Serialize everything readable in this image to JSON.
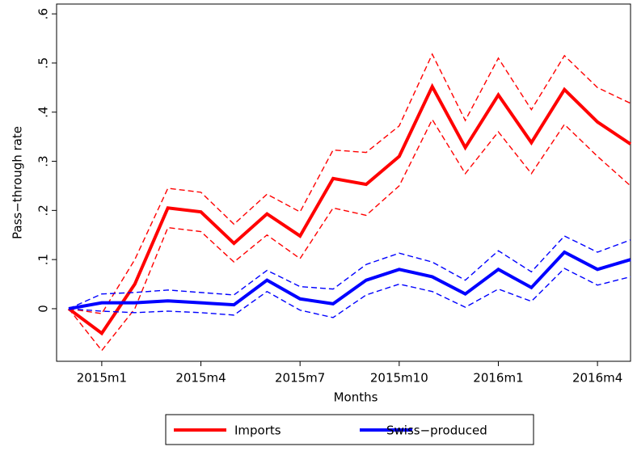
{
  "chart_data": {
    "type": "line",
    "x_label": "Months",
    "y_label": "Pass−through rate",
    "categories": [
      null,
      "2015m1",
      null,
      null,
      "2015m4",
      null,
      null,
      "2015m7",
      null,
      null,
      "2015m10",
      null,
      null,
      "2016m1",
      null,
      null,
      "2016m4",
      null
    ],
    "series": [
      {
        "name": "Imports",
        "color": "#ff0000",
        "values": [
          0,
          -0.05,
          0.05,
          0.205,
          0.197,
          0.133,
          0.193,
          0.148,
          0.265,
          0.253,
          0.31,
          0.452,
          0.328,
          0.435,
          0.338,
          0.446,
          0.38,
          0.335
        ],
        "upper": [
          0,
          -0.01,
          0.1,
          0.245,
          0.237,
          0.172,
          0.233,
          0.197,
          0.323,
          0.318,
          0.372,
          0.518,
          0.383,
          0.51,
          0.405,
          0.515,
          0.45,
          0.418
        ],
        "lower": [
          0,
          -0.085,
          0.0,
          0.165,
          0.157,
          0.095,
          0.15,
          0.102,
          0.205,
          0.19,
          0.25,
          0.385,
          0.275,
          0.36,
          0.275,
          0.375,
          0.31,
          0.25
        ]
      },
      {
        "name": "Swiss−produced",
        "color": "#0000ff",
        "values": [
          0,
          0.012,
          0.012,
          0.016,
          0.012,
          0.008,
          0.058,
          0.02,
          0.01,
          0.058,
          0.08,
          0.065,
          0.03,
          0.08,
          0.043,
          0.115,
          0.08,
          0.1
        ],
        "upper": [
          0,
          0.03,
          0.033,
          0.038,
          0.033,
          0.028,
          0.078,
          0.045,
          0.04,
          0.09,
          0.113,
          0.095,
          0.058,
          0.118,
          0.075,
          0.148,
          0.115,
          0.14
        ],
        "lower": [
          0,
          -0.005,
          -0.008,
          -0.005,
          -0.008,
          -0.013,
          0.035,
          -0.003,
          -0.018,
          0.028,
          0.05,
          0.035,
          0.003,
          0.04,
          0.015,
          0.082,
          0.048,
          0.065
        ]
      }
    ],
    "ylim": [
      -0.107,
      0.62
    ],
    "yticks": [
      0,
      {
        "value": 0.1,
        "label": ".1"
      },
      {
        "value": 0.2,
        "label": ".2"
      },
      {
        "value": 0.3,
        "label": ".3"
      },
      {
        "value": 0.4,
        "label": ".4"
      },
      {
        "value": 0.5,
        "label": ".5"
      },
      {
        "value": 0.6,
        "label": ".6"
      }
    ],
    "legend": "bottom"
  }
}
